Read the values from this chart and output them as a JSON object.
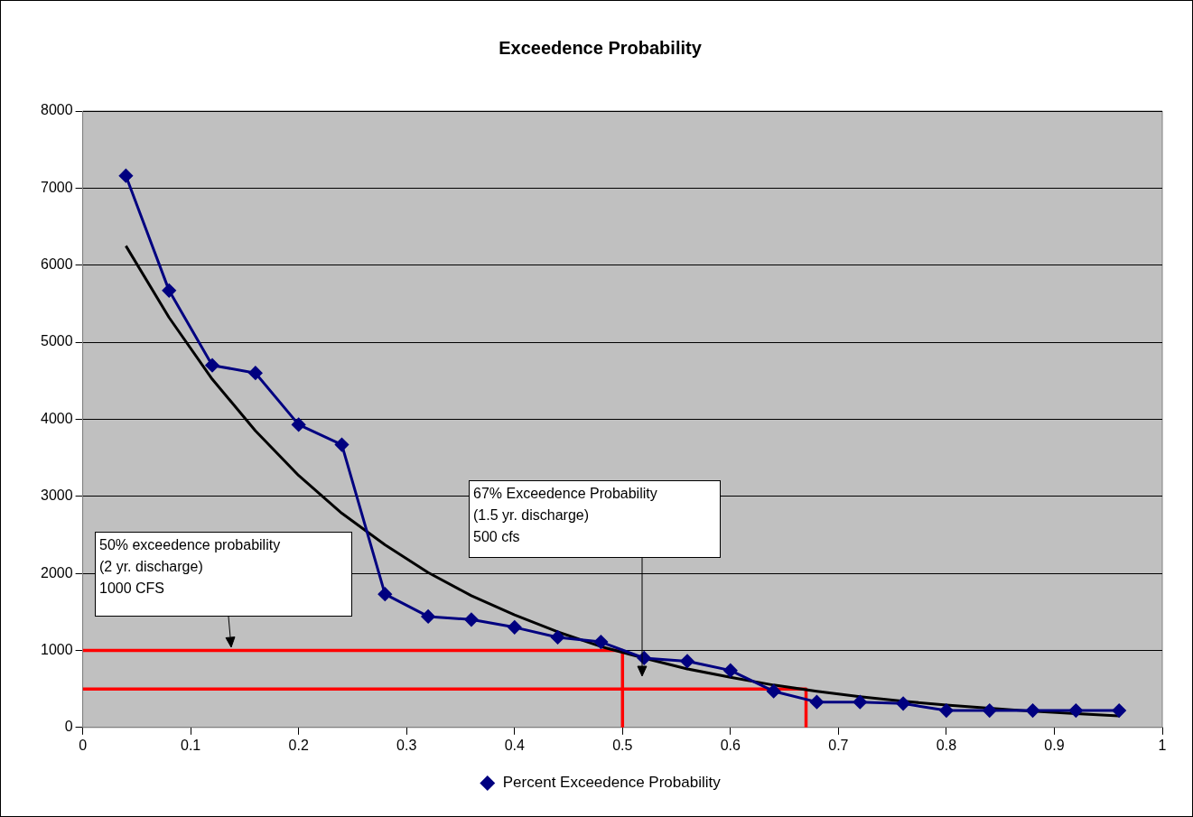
{
  "chart_data": {
    "type": "line",
    "title": "Exceedence Probability",
    "x": [
      0.04,
      0.08,
      0.12,
      0.16,
      0.2,
      0.24,
      0.28,
      0.32,
      0.36,
      0.4,
      0.44,
      0.48,
      0.52,
      0.56,
      0.6,
      0.64,
      0.68,
      0.72,
      0.76,
      0.8,
      0.84,
      0.88,
      0.92,
      0.96
    ],
    "series": [
      {
        "name": "Percent Exceedence Probability",
        "color": "#000080",
        "values": [
          7160,
          5670,
          4700,
          4600,
          3930,
          3670,
          1730,
          1440,
          1400,
          1300,
          1170,
          1110,
          900,
          860,
          740,
          470,
          330,
          330,
          310,
          220,
          220,
          220,
          220,
          220
        ]
      },
      {
        "type": "line",
        "color": "#000000",
        "marker": "none",
        "x": [
          0.04,
          0.08,
          0.12,
          0.16,
          0.2,
          0.24,
          0.28,
          0.32,
          0.36,
          0.4,
          0.44,
          0.48,
          0.52,
          0.56,
          0.6,
          0.64,
          0.68,
          0.72,
          0.76,
          0.8,
          0.84,
          0.88,
          0.92,
          0.96
        ],
        "values": [
          6250,
          5320,
          4520,
          3850,
          3270,
          2780,
          2370,
          2010,
          1710,
          1460,
          1240,
          1050,
          900,
          760,
          650,
          550,
          470,
          400,
          340,
          290,
          250,
          210,
          180,
          150
        ]
      },
      {
        "type": "line",
        "color": "#ff0000",
        "marker": "none",
        "x": [
          0,
          0.5,
          0.5
        ],
        "values": [
          1000,
          1000,
          0
        ]
      },
      {
        "type": "line",
        "color": "#ff0000",
        "marker": "none",
        "x": [
          0,
          0.67,
          0.67
        ],
        "values": [
          500,
          500,
          0
        ]
      }
    ],
    "xlim": [
      0,
      1
    ],
    "xticks": [
      0,
      0.1,
      0.2,
      0.3,
      0.4,
      0.5,
      0.6,
      0.7,
      0.8,
      0.9,
      1
    ],
    "ylim": [
      0,
      8000
    ],
    "yticks": [
      0,
      1000,
      2000,
      3000,
      4000,
      5000,
      6000,
      7000,
      8000
    ],
    "grid": "y",
    "legend": "bottom",
    "marker": "diamond",
    "annotations": [
      "50% exceedence probability\n(2 yr. discharge)\n1000 CFS",
      "67% Exceedence Probability\n(1.5 yr. discharge)\n500 cfs"
    ]
  }
}
